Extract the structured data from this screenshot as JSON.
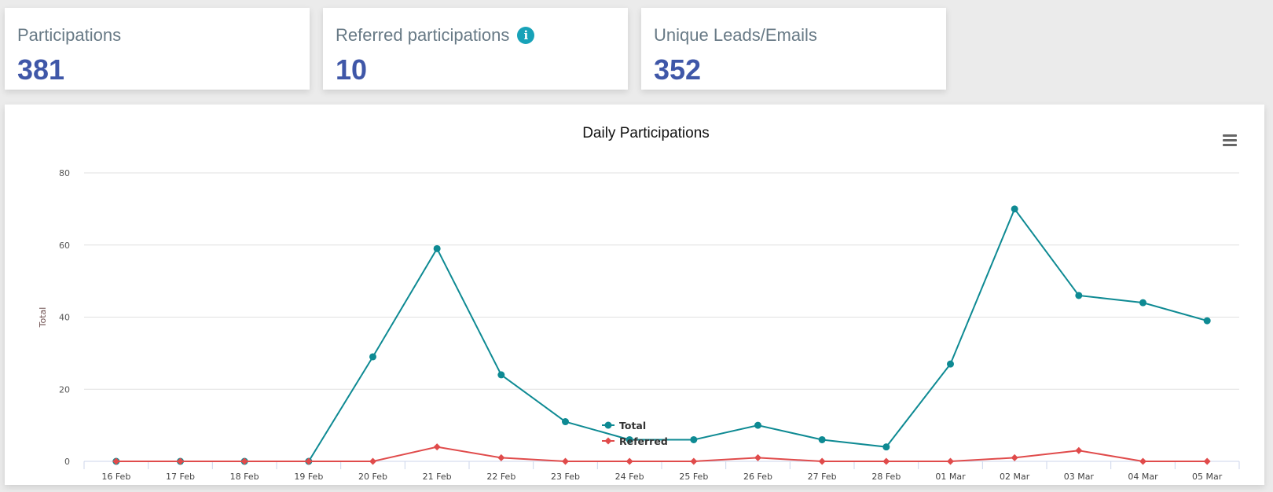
{
  "stats": [
    {
      "label": "Participations",
      "value": "381",
      "info": false
    },
    {
      "label": "Referred participations",
      "value": "10",
      "info": true
    },
    {
      "label": "Unique Leads/Emails",
      "value": "352",
      "info": false
    }
  ],
  "chart_menu_icon": "hamburger-menu-icon",
  "colors": {
    "total": "#0e8a93",
    "referred": "#e04b4b",
    "stat_value": "#3f57a8",
    "info": "#17a2b8"
  },
  "chart_data": {
    "type": "line",
    "title": "Daily Participations",
    "ylabel": "Total",
    "xlabel": "",
    "ylim": [
      0,
      80
    ],
    "yticks": [
      0,
      20,
      40,
      60,
      80
    ],
    "grid": true,
    "legend": "bottom-center",
    "categories": [
      "16 Feb",
      "17 Feb",
      "18 Feb",
      "19 Feb",
      "20 Feb",
      "21 Feb",
      "22 Feb",
      "23 Feb",
      "24 Feb",
      "25 Feb",
      "26 Feb",
      "27 Feb",
      "28 Feb",
      "01 Mar",
      "02 Mar",
      "03 Mar",
      "04 Mar",
      "05 Mar"
    ],
    "series": [
      {
        "name": "Total",
        "marker": "circle",
        "color": "#0e8a93",
        "values": [
          0,
          0,
          0,
          0,
          29,
          59,
          24,
          11,
          6,
          6,
          10,
          6,
          4,
          27,
          70,
          46,
          44,
          39
        ]
      },
      {
        "name": "Referred",
        "marker": "diamond",
        "color": "#e04b4b",
        "values": [
          0,
          0,
          0,
          0,
          0,
          4,
          1,
          0,
          0,
          0,
          1,
          0,
          0,
          0,
          1,
          3,
          0,
          0
        ]
      }
    ]
  }
}
